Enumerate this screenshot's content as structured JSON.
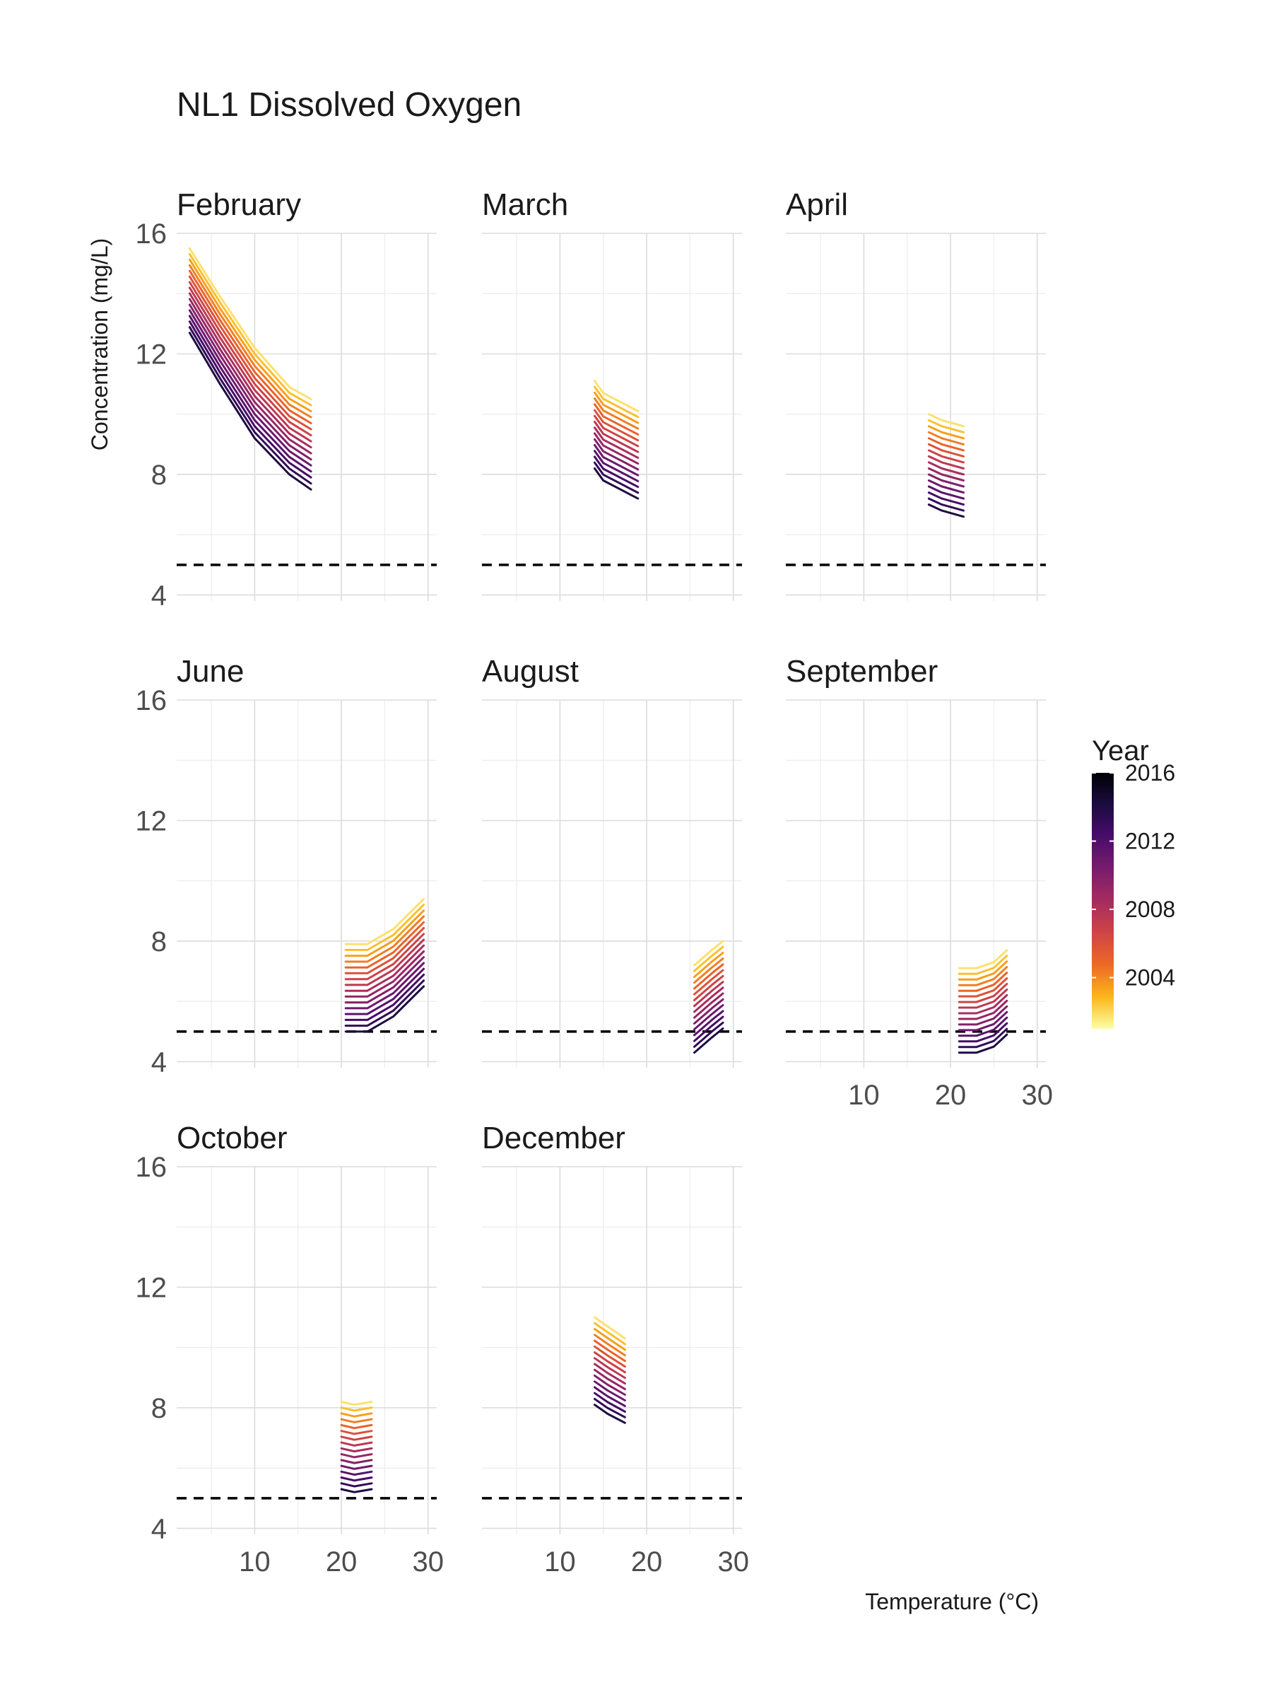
{
  "chart_data": {
    "type": "line",
    "title": "NL1 Dissolved Oxygen",
    "xlabel": "Temperature (°C)",
    "ylabel": "Concentration (mg/L)",
    "xlim": [
      1,
      31
    ],
    "ylim": [
      3.8,
      16
    ],
    "x_ticks": [
      10,
      20,
      30
    ],
    "y_ticks": [
      4,
      8,
      12,
      16
    ],
    "grid": true,
    "threshold": 5,
    "legend": {
      "title": "Year",
      "position": "right",
      "labels": [
        "2016",
        "2012",
        "2008",
        "2004"
      ],
      "range": [
        2001,
        2016
      ],
      "palette": "inferno (reversed)"
    },
    "years": [
      2001,
      2002,
      2003,
      2004,
      2005,
      2006,
      2007,
      2008,
      2009,
      2010,
      2011,
      2012,
      2013,
      2014,
      2015,
      2016
    ],
    "panels": [
      {
        "month": "February",
        "x": [
          2.5,
          6,
          10,
          14,
          16.5
        ],
        "curves": [
          {
            "year": 2001,
            "y": [
              15.5,
              13.9,
              12.2,
              10.9,
              10.5
            ]
          },
          {
            "year": 2016,
            "y": [
              12.7,
              11.0,
              9.2,
              8.0,
              7.5
            ]
          }
        ]
      },
      {
        "month": "March",
        "x": [
          14,
          15,
          17,
          19
        ],
        "curves": [
          {
            "year": 2001,
            "y": [
              11.1,
              10.7,
              10.4,
              10.1
            ]
          },
          {
            "year": 2016,
            "y": [
              8.2,
              7.8,
              7.5,
              7.2
            ]
          }
        ]
      },
      {
        "month": "April",
        "x": [
          17.5,
          19,
          21.5
        ],
        "curves": [
          {
            "year": 2001,
            "y": [
              10.0,
              9.8,
              9.6
            ]
          },
          {
            "year": 2016,
            "y": [
              7.0,
              6.8,
              6.6
            ]
          }
        ]
      },
      {
        "month": "June",
        "x": [
          20.5,
          23,
          26,
          29.5
        ],
        "curves": [
          {
            "year": 2001,
            "y": [
              7.9,
              7.9,
              8.4,
              9.4
            ]
          },
          {
            "year": 2016,
            "y": [
              5.0,
              5.0,
              5.5,
              6.5
            ]
          }
        ]
      },
      {
        "month": "August",
        "x": [
          25.5,
          27.5,
          28.8
        ],
        "curves": [
          {
            "year": 2001,
            "y": [
              7.2,
              7.7,
              8.0
            ]
          },
          {
            "year": 2016,
            "y": [
              4.3,
              4.8,
              5.1
            ]
          }
        ]
      },
      {
        "month": "September",
        "x": [
          21,
          23,
          25,
          26.5
        ],
        "curves": [
          {
            "year": 2001,
            "y": [
              7.1,
              7.1,
              7.3,
              7.7
            ]
          },
          {
            "year": 2016,
            "y": [
              4.3,
              4.3,
              4.5,
              4.9
            ]
          }
        ]
      },
      {
        "month": "October",
        "x": [
          20,
          21.5,
          23.5
        ],
        "curves": [
          {
            "year": 2001,
            "y": [
              8.2,
              8.1,
              8.2
            ]
          },
          {
            "year": 2016,
            "y": [
              5.3,
              5.2,
              5.3
            ]
          }
        ]
      },
      {
        "month": "December",
        "x": [
          14,
          15.5,
          17.5
        ],
        "curves": [
          {
            "year": 2001,
            "y": [
              11.0,
              10.7,
              10.3
            ]
          },
          {
            "year": 2016,
            "y": [
              8.1,
              7.8,
              7.5
            ]
          }
        ]
      }
    ]
  }
}
